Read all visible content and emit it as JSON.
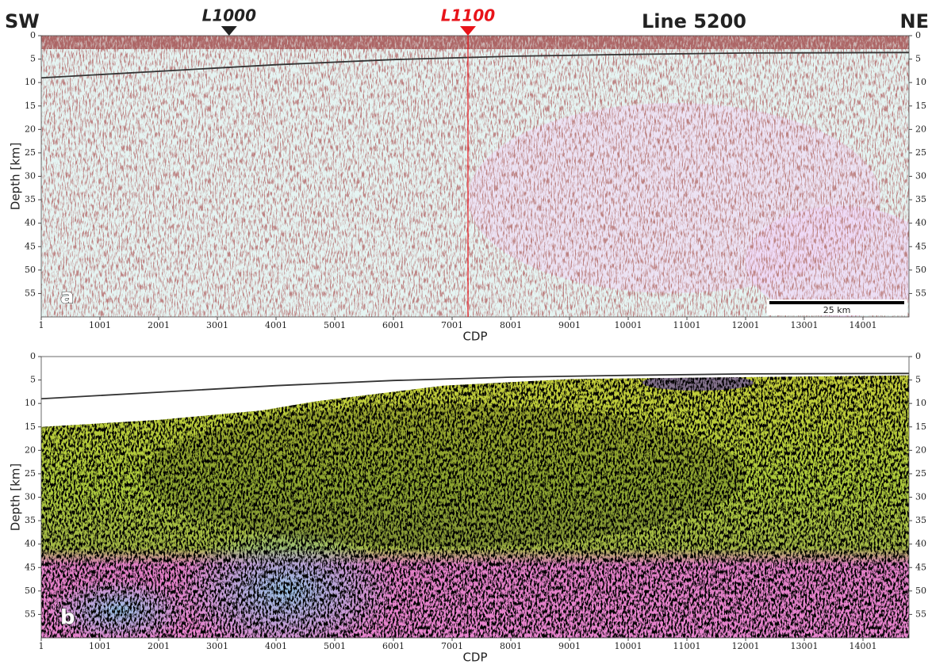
{
  "chart_data": [
    {
      "type": "seismic-section",
      "header_left": "SW",
      "header_right": "NE",
      "title": "Line 5200",
      "markers": [
        {
          "label": "L1000",
          "x": 3201,
          "color": "#222222"
        },
        {
          "label": "L1100",
          "x": 7271,
          "color": "#e8141a"
        }
      ],
      "panel_label": "a",
      "scale_bar_label": "25 km",
      "x_label": "CDP",
      "y_label": "Depth [km]",
      "xlim": [
        1,
        14785
      ],
      "xticks": [
        1,
        1001,
        2001,
        3001,
        4001,
        5001,
        6001,
        7001,
        8001,
        9001,
        10001,
        11001,
        12001,
        13001,
        14001
      ],
      "ylim": [
        0,
        60
      ],
      "yticks": [
        0,
        5,
        10,
        15,
        20,
        25,
        30,
        35,
        40,
        45,
        50,
        55
      ],
      "series": [
        {
          "color": "#333333",
          "x": [
            1,
            2001,
            4001,
            6001,
            8001,
            10001,
            12001,
            14785
          ],
          "values": [
            9,
            7.6,
            6.2,
            5.1,
            4.4,
            4,
            3.7,
            3.6
          ]
        }
      ]
    },
    {
      "type": "seismic-section",
      "panel_label": "b",
      "x_label": "CDP",
      "y_label": "Depth [km]",
      "xlim": [
        1,
        14785
      ],
      "xticks": [
        1,
        1001,
        2001,
        3001,
        4001,
        5001,
        6001,
        7001,
        8001,
        9001,
        10001,
        11001,
        12001,
        13001,
        14001
      ],
      "ylim": [
        0,
        60
      ],
      "yticks": [
        0,
        5,
        10,
        15,
        20,
        25,
        30,
        35,
        40,
        45,
        50,
        55
      ],
      "series": [
        {
          "color": "#333333",
          "x": [
            1,
            2001,
            4001,
            6001,
            8001,
            10001,
            12001,
            14785
          ],
          "values": [
            9,
            7.6,
            6.2,
            5.1,
            4.4,
            4,
            3.7,
            3.6
          ]
        }
      ]
    }
  ]
}
